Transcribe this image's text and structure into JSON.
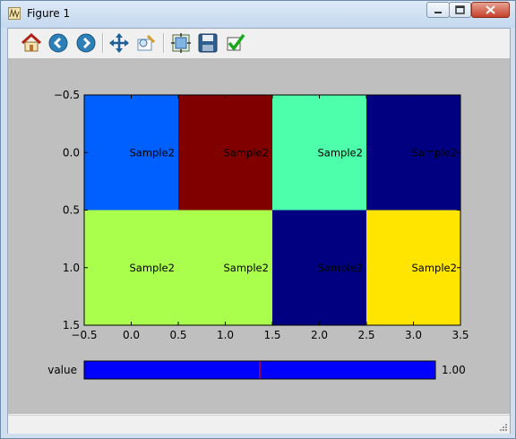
{
  "window": {
    "title": "Figure 1"
  },
  "toolbar": {
    "buttons": [
      {
        "name": "home-button",
        "icon": "home-icon"
      },
      {
        "name": "back-button",
        "icon": "back-arrow-icon"
      },
      {
        "name": "forward-button",
        "icon": "forward-arrow-icon"
      },
      {
        "name": "pan-button",
        "icon": "pan-icon"
      },
      {
        "name": "zoom-button",
        "icon": "zoom-to-rect-icon"
      },
      {
        "name": "subplots-button",
        "icon": "subplots-icon"
      },
      {
        "name": "save-button",
        "icon": "save-icon"
      },
      {
        "name": "edit-button",
        "icon": "checkmark-icon"
      }
    ]
  },
  "chart_data": {
    "type": "heatmap",
    "title": "",
    "xlabel": "",
    "ylabel": "",
    "xlim": [
      -0.5,
      3.5
    ],
    "ylim": [
      1.5,
      -0.5
    ],
    "xticks": [
      "−0.5",
      "0.0",
      "0.5",
      "1.0",
      "1.5",
      "2.0",
      "2.5",
      "3.0",
      "3.5"
    ],
    "yticks": [
      "−0.5",
      "0.0",
      "0.5",
      "1.0",
      "1.5"
    ],
    "colormap": "jet",
    "cells": [
      [
        {
          "color": "#0060ff",
          "label": "Sample2"
        },
        {
          "color": "#800000",
          "label": "Sample2"
        },
        {
          "color": "#4dffaa",
          "label": "Sample2"
        },
        {
          "color": "#000080",
          "label": "Sample2"
        }
      ],
      [
        {
          "color": "#aaff4d",
          "label": "Sample2"
        },
        {
          "color": "#aaff4d",
          "label": "Sample2"
        },
        {
          "color": "#000080",
          "label": "Sample2"
        },
        {
          "color": "#ffe500",
          "label": "Sample2"
        }
      ]
    ]
  },
  "slider": {
    "label": "value",
    "value_text": "1.00",
    "value": 1.0,
    "fill_fraction": 1.0,
    "marker_fraction": 0.5,
    "fill_color": "#0000ff",
    "marker_color": "#ff0000"
  }
}
